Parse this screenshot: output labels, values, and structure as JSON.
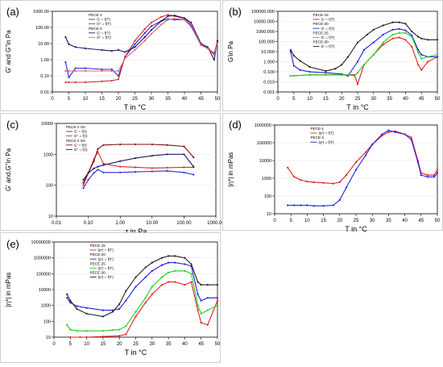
{
  "chart_data": [
    {
      "panel_label": "(a)",
      "type": "line",
      "xlabel": "T in °C",
      "ylabel": "G' and G''in Pa",
      "ylog": true,
      "xlim": [
        0,
        50
      ],
      "ylim": [
        0.01,
        1000
      ],
      "xticks": [
        0,
        5,
        10,
        15,
        20,
        25,
        30,
        35,
        40,
        45,
        50
      ],
      "yticks": [
        0.01,
        0.1,
        1,
        10,
        100,
        1000
      ],
      "ytick_labels": [
        "0.01",
        "0.10",
        "1.00",
        "10.00",
        "100.00",
        "1000.00"
      ],
      "legend": [
        "PECE-1",
        "G' = f(T)",
        "G'' = f(T)",
        "PECE-2",
        "G' = f(T)",
        "G'' = f(T)"
      ],
      "series": [
        {
          "name": "PECE-1 G' = f(T)",
          "color": "#2b2bd9",
          "x": [
            4,
            5,
            7,
            10,
            15,
            18,
            20,
            22,
            25,
            28,
            30,
            33,
            35,
            37,
            40,
            42,
            45,
            47,
            49,
            50
          ],
          "y": [
            0.7,
            0.08,
            0.3,
            0.3,
            0.25,
            0.25,
            0.1,
            1.5,
            9,
            45,
            120,
            250,
            330,
            300,
            300,
            120,
            8,
            5,
            2.5,
            12
          ]
        },
        {
          "name": "PECE-1 G'' = f(T)",
          "color": "#d92b2b",
          "x": [
            4,
            5,
            7,
            10,
            15,
            18,
            20,
            22,
            25,
            28,
            30,
            33,
            35,
            37,
            40,
            42,
            45,
            47,
            49,
            50
          ],
          "y": [
            0.04,
            0.04,
            0.04,
            0.04,
            0.045,
            0.05,
            0.06,
            1.5,
            15,
            80,
            200,
            450,
            600,
            500,
            350,
            150,
            8,
            6,
            2,
            15
          ]
        },
        {
          "name": "PECE-2 G' = f(T)",
          "color": "#1a1a66",
          "x": [
            4,
            5,
            7,
            10,
            15,
            18,
            20,
            22,
            25,
            28,
            30,
            33,
            35,
            37,
            40,
            42,
            45,
            47,
            49,
            50
          ],
          "y": [
            25,
            9,
            6,
            5,
            4,
            3.5,
            4,
            3,
            6,
            25,
            70,
            250,
            500,
            550,
            380,
            200,
            10,
            6,
            1,
            15
          ]
        },
        {
          "name": "PECE-2 G'' = f(T)",
          "color": "#e06080",
          "x": [
            4,
            5,
            7,
            10,
            15,
            18,
            20,
            22,
            25,
            28,
            30,
            33,
            35,
            37,
            40,
            42,
            45,
            47,
            49,
            50
          ],
          "y": [
            0.2,
            0.2,
            0.2,
            0.2,
            0.2,
            0.2,
            0.2,
            1.2,
            4,
            15,
            40,
            150,
            300,
            350,
            300,
            150,
            8,
            5,
            2,
            10
          ]
        }
      ]
    },
    {
      "panel_label": "(b)",
      "type": "line",
      "xlabel": "T in °C",
      "ylabel": "G'in Pa",
      "ylog": true,
      "xlim": [
        0,
        50
      ],
      "ylim": [
        0.001,
        100000
      ],
      "xticks": [
        0,
        5,
        10,
        15,
        20,
        25,
        30,
        35,
        40,
        45,
        50
      ],
      "yticks": [
        0.001,
        0.01,
        0.1,
        1,
        10,
        100,
        1000,
        10000,
        100000
      ],
      "ytick_labels": [
        "0.001",
        "0.010",
        "0.100",
        "1.000",
        "10.000",
        "100.000",
        "1000.000",
        "10000.000",
        "100000.000"
      ],
      "legend": [
        "PECE-15",
        "G' = f(T)",
        "PECE-20",
        "G' = f(T)",
        "PECE-25",
        "G' = f(T)",
        "PECE-30",
        "G' = f(T)"
      ],
      "series": [
        {
          "name": "PECE-15 G' = f(T)",
          "color": "#e02020",
          "x": [
            4,
            5,
            10,
            15,
            20,
            22,
            24,
            25,
            27,
            30,
            33,
            36,
            38,
            40,
            42,
            44,
            45,
            47,
            50
          ],
          "y": [
            0.04,
            0.04,
            0.05,
            0.05,
            0.05,
            0.05,
            0.05,
            0.006,
            0.5,
            5,
            50,
            200,
            250,
            150,
            30,
            0.5,
            0.15,
            1,
            3
          ]
        },
        {
          "name": "PECE-20 G' = f(T)",
          "color": "#2020e0",
          "x": [
            4,
            5,
            7,
            10,
            15,
            20,
            22,
            25,
            27,
            30,
            33,
            36,
            38,
            40,
            42,
            44,
            45,
            47,
            50
          ],
          "y": [
            10,
            0.4,
            0.15,
            0.1,
            0.08,
            0.06,
            0.04,
            1,
            15,
            80,
            500,
            1500,
            1800,
            1300,
            400,
            15,
            5,
            3,
            3
          ]
        },
        {
          "name": "PECE-25 G' = f(T)",
          "color": "#20d020",
          "x": [
            4,
            5,
            10,
            15,
            20,
            22,
            24,
            25,
            27,
            30,
            33,
            36,
            38,
            40,
            42,
            44,
            45,
            47,
            50
          ],
          "y": [
            0.04,
            0.04,
            0.05,
            0.05,
            0.05,
            0.05,
            0.04,
            0.08,
            0.5,
            5,
            80,
            500,
            700,
            700,
            300,
            8,
            2,
            3,
            5
          ]
        },
        {
          "name": "PECE-30 G' = f(T)",
          "color": "#202020",
          "x": [
            4,
            5,
            7,
            10,
            15,
            18,
            20,
            22,
            25,
            28,
            30,
            33,
            36,
            38,
            40,
            42,
            44,
            45,
            47,
            50
          ],
          "y": [
            15,
            4,
            1.2,
            0.3,
            0.12,
            0.2,
            0.5,
            3,
            80,
            500,
            1500,
            4000,
            8000,
            8000,
            6000,
            1000,
            300,
            200,
            150,
            150
          ]
        }
      ]
    },
    {
      "panel_label": "(c)",
      "type": "line",
      "xlabel": "τ in Pa",
      "ylabel": "G' and,G''in Pa",
      "xlog": true,
      "ylog": true,
      "xlim": [
        0.01,
        1000
      ],
      "ylim": [
        10,
        10000
      ],
      "xticks": [
        0.01,
        0.1,
        1,
        10,
        100,
        1000
      ],
      "xtick_labels": [
        "0.01",
        "0.10",
        "1.00",
        "10.00",
        "100.00",
        "1000.00"
      ],
      "yticks": [
        10,
        100,
        1000,
        10000
      ],
      "ytick_labels": [
        "10",
        "100",
        "1000",
        "10000"
      ],
      "legend": [
        "PECE-1 SS",
        "G' = f(τ)",
        "G'' = f(τ)",
        "PECE-2 SS",
        "G' = f(τ)",
        "G'' = f(τ)"
      ],
      "series": [
        {
          "name": "PECE-1 SS G' = f(τ)",
          "color": "#2b2bd9",
          "x": [
            0.07,
            0.1,
            0.15,
            0.2,
            0.3,
            1,
            3,
            10,
            30,
            100,
            200
          ],
          "y": [
            80,
            150,
            250,
            320,
            260,
            260,
            270,
            280,
            290,
            260,
            220
          ]
        },
        {
          "name": "PECE-1 SS G'' = f(τ)",
          "color": "#d92b2b",
          "x": [
            0.07,
            0.1,
            0.15,
            0.2,
            0.3,
            1,
            3,
            10,
            30,
            100,
            200
          ],
          "y": [
            100,
            250,
            700,
            1200,
            500,
            400,
            380,
            360,
            370,
            380,
            380
          ]
        },
        {
          "name": "PECE-2 SS G' = f(τ)",
          "color": "#7a1010",
          "x": [
            0.07,
            0.1,
            0.15,
            0.2,
            0.3,
            1,
            3,
            10,
            30,
            100,
            200
          ],
          "y": [
            120,
            250,
            600,
            1500,
            2000,
            2100,
            2100,
            2100,
            2000,
            1800,
            800
          ]
        },
        {
          "name": "PECE-2 SS G'' = f(τ)",
          "color": "#1a1a66",
          "x": [
            0.07,
            0.1,
            0.15,
            0.2,
            0.3,
            1,
            3,
            10,
            30,
            100,
            200
          ],
          "y": [
            150,
            250,
            350,
            400,
            450,
            600,
            750,
            900,
            1000,
            1000,
            400
          ]
        }
      ]
    },
    {
      "panel_label": "(d)",
      "type": "line",
      "xlabel": "T in °C",
      "ylabel": "|η*| in mPas",
      "ylog": true,
      "xlim": [
        0,
        50
      ],
      "ylim": [
        10,
        1000000
      ],
      "xticks": [
        0,
        5,
        10,
        15,
        20,
        25,
        30,
        35,
        40,
        45,
        50
      ],
      "yticks": [
        10,
        100,
        1000,
        10000,
        100000,
        1000000
      ],
      "ytick_labels": [
        "10",
        "100",
        "1000",
        "10000",
        "100000",
        "1000000"
      ],
      "legend": [
        "PECE-1",
        "|η*| = f(T)",
        "PECE-2",
        "|η*| = f(T)"
      ],
      "series": [
        {
          "name": "PECE-1 |η*| = f(T)",
          "color": "#e02020",
          "x": [
            4,
            6,
            8,
            10,
            12,
            15,
            18,
            20,
            22,
            25,
            28,
            30,
            33,
            35,
            37,
            40,
            42,
            44,
            45,
            47,
            49,
            50
          ],
          "y": [
            4000,
            1200,
            800,
            650,
            600,
            550,
            500,
            600,
            1500,
            8000,
            30000,
            80000,
            250000,
            400000,
            450000,
            300000,
            200000,
            10000,
            2000,
            1500,
            1500,
            3000
          ]
        },
        {
          "name": "PECE-2 |η*| = f(T)",
          "color": "#2020e0",
          "x": [
            4,
            6,
            8,
            10,
            12,
            15,
            18,
            20,
            22,
            25,
            28,
            30,
            33,
            35,
            37,
            40,
            42,
            44,
            45,
            47,
            49,
            50
          ],
          "y": [
            30,
            30,
            30,
            30,
            28,
            28,
            30,
            60,
            300,
            3000,
            20000,
            80000,
            300000,
            500000,
            400000,
            300000,
            150000,
            8000,
            1500,
            1200,
            1200,
            2000
          ]
        }
      ]
    },
    {
      "panel_label": "(e)",
      "type": "line",
      "xlabel": "T in °C",
      "ylabel": "|η*| in mPas",
      "ylog": true,
      "xlim": [
        0,
        50
      ],
      "ylim": [
        10,
        10000000
      ],
      "xticks": [
        0,
        5,
        10,
        15,
        20,
        25,
        30,
        35,
        40,
        45,
        50
      ],
      "yticks": [
        10,
        100,
        1000,
        10000,
        100000,
        1000000,
        10000000
      ],
      "ytick_labels": [
        "10",
        "100",
        "1000",
        "10000",
        "100000",
        "1000000",
        "10000000"
      ],
      "legend": [
        "PECE-15",
        "|η*| = f(T)",
        "PECE-20",
        "|η*| = f(T)",
        "PECE-25",
        "|η*| = f(T)",
        "PECE-30",
        "|η*| = f(T)"
      ],
      "series": [
        {
          "name": "PECE-15 |η*| = f(T)",
          "color": "#e02020",
          "x": [
            5,
            8,
            10,
            15,
            20,
            22,
            25,
            28,
            30,
            33,
            35,
            37,
            40,
            42,
            44,
            45,
            47,
            50
          ],
          "y": [
            10,
            10,
            10,
            11,
            12,
            15,
            200,
            1500,
            5000,
            20000,
            30000,
            30000,
            20000,
            30000,
            500,
            80,
            60,
            2000
          ]
        },
        {
          "name": "PECE-20 |η*| = f(T)",
          "color": "#2020e0",
          "x": [
            4,
            5,
            7,
            10,
            15,
            18,
            20,
            22,
            25,
            28,
            30,
            33,
            35,
            37,
            40,
            42,
            44,
            45,
            47,
            50
          ],
          "y": [
            3000,
            1500,
            900,
            700,
            500,
            500,
            600,
            2000,
            15000,
            60000,
            150000,
            350000,
            500000,
            500000,
            400000,
            300000,
            5000,
            2000,
            3000,
            3000
          ]
        },
        {
          "name": "PECE-25 |η*| = f(T)",
          "color": "#20d020",
          "x": [
            4,
            5,
            7,
            10,
            15,
            18,
            20,
            22,
            25,
            28,
            30,
            33,
            35,
            37,
            40,
            42,
            44,
            45,
            47,
            50
          ],
          "y": [
            60,
            30,
            25,
            25,
            25,
            28,
            30,
            50,
            400,
            3000,
            15000,
            60000,
            120000,
            150000,
            150000,
            100000,
            1000,
            300,
            500,
            1000
          ]
        },
        {
          "name": "PECE-30 |η*| = f(T)",
          "color": "#202020",
          "x": [
            4,
            5,
            7,
            10,
            15,
            18,
            20,
            22,
            25,
            28,
            30,
            33,
            35,
            37,
            40,
            42,
            44,
            45,
            47,
            50
          ],
          "y": [
            5000,
            2000,
            600,
            300,
            200,
            400,
            1200,
            8000,
            60000,
            250000,
            500000,
            1000000,
            1300000,
            1300000,
            1000000,
            400000,
            30000,
            20000,
            20000,
            20000
          ]
        }
      ]
    }
  ]
}
